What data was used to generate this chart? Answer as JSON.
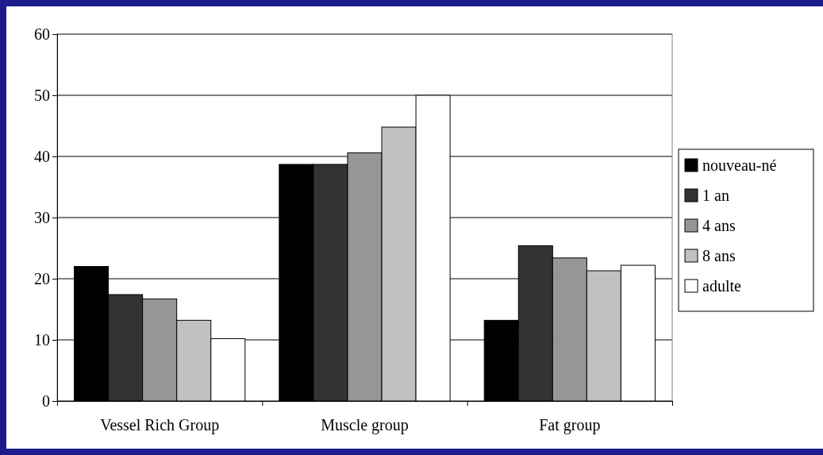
{
  "chart_data": {
    "type": "bar",
    "categories": [
      "Vessel Rich Group",
      "Muscle group",
      "Fat group"
    ],
    "series": [
      {
        "name": "nouveau-né",
        "color": "#000000",
        "values": [
          22.0,
          38.7,
          13.2
        ]
      },
      {
        "name": "1 an",
        "color": "#333333",
        "values": [
          17.4,
          38.7,
          25.4
        ]
      },
      {
        "name": "4 ans",
        "color": "#969696",
        "values": [
          16.7,
          40.6,
          23.4
        ]
      },
      {
        "name": "8 ans",
        "color": "#c0c0c0",
        "values": [
          13.2,
          44.8,
          21.3
        ]
      },
      {
        "name": "adulte",
        "color": "#ffffff",
        "values": [
          10.2,
          50.0,
          22.2
        ]
      }
    ],
    "ylim": [
      0,
      60
    ],
    "yticks": [
      0,
      10,
      20,
      30,
      40,
      50,
      60
    ],
    "grid": "y",
    "legend": "right"
  }
}
